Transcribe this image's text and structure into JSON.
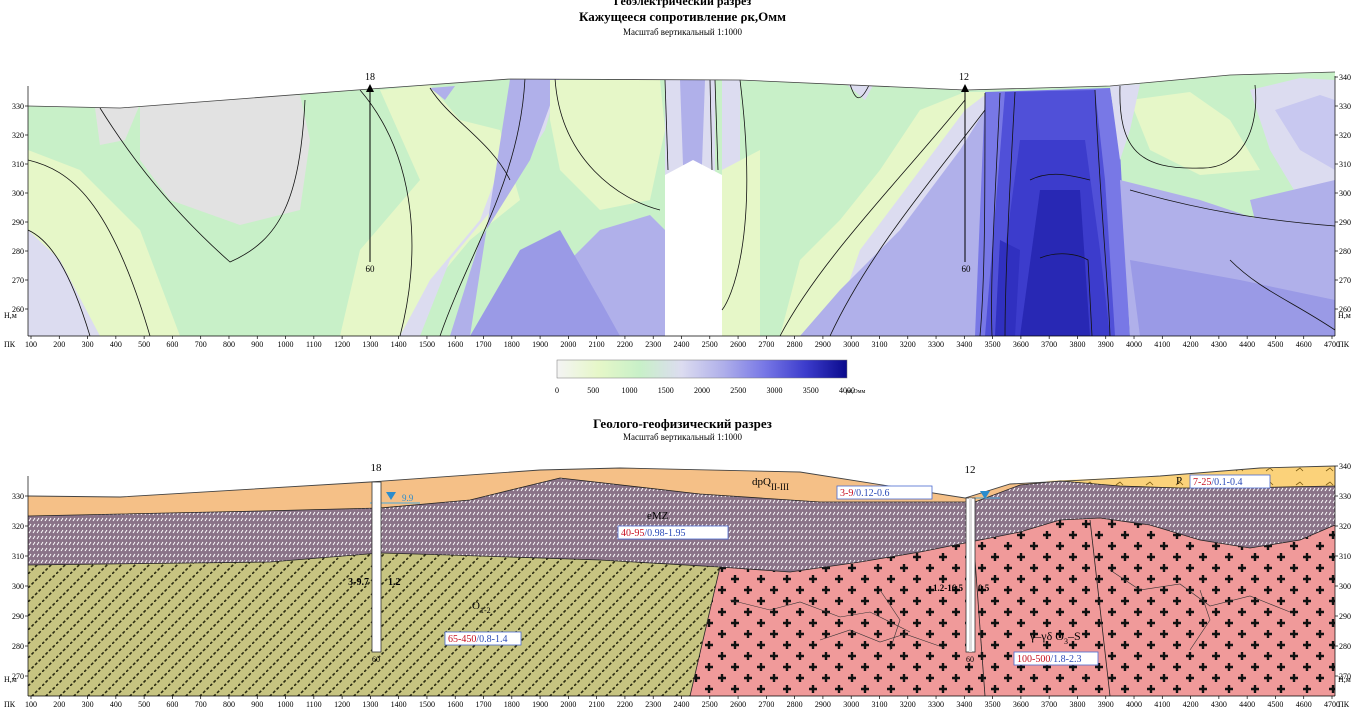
{
  "section1": {
    "title_line1": "Геоэлектрический разрез",
    "title_line2": "Кажущееся сопротивление ρк,Омм",
    "scale": "Масштаб вертикальный 1:1000",
    "wells": [
      {
        "name": "18",
        "depth": "60"
      },
      {
        "name": "12",
        "depth": "60"
      }
    ]
  },
  "colorbar": {
    "ticks": [
      "0",
      "500",
      "1000",
      "1500",
      "2000",
      "2500",
      "3000",
      "3500",
      "4000"
    ],
    "unit": "ρк,Омм",
    "stops": [
      "#f4f4f4",
      "#e6f7c8",
      "#c8f0c8",
      "#dcdcf0",
      "#b0b0ea",
      "#7878e6",
      "#3c3ccc",
      "#0a0a8c"
    ]
  },
  "section2": {
    "title": "Геолого-геофизический разрез",
    "scale": "Масштаб вертикальный 1:1000",
    "wells": [
      {
        "name": "18",
        "depth": "60",
        "water": "9.9",
        "left_label": "3-9.7",
        "right_label": "1.2"
      },
      {
        "name": "12",
        "depth": "60",
        "water": "",
        "left_label": "1.2-16.5",
        "right_label": "0.5"
      }
    ],
    "layers": {
      "dpq": "dpQ",
      "dpq_sub": "II-III",
      "emz": "eMZ",
      "p": "P",
      "o": "O",
      "o_sub": "1-2",
      "granite": "γ–γδ O",
      "granite_sub": "3",
      "granite_tail": "–S"
    },
    "boxes": [
      {
        "red": "3-9",
        "blue": "/0.12-0.6"
      },
      {
        "red": "40-95",
        "blue": "/0.98-1.95"
      },
      {
        "red": "7-25",
        "blue": "/0.1-0.4"
      },
      {
        "red": "65-450",
        "blue": "/0.8-1.4"
      },
      {
        "red": "100-500",
        "blue": "/1.8-2.3"
      }
    ]
  },
  "axis": {
    "y_ticks": [
      "330",
      "320",
      "310",
      "300",
      "290",
      "280",
      "270",
      "260"
    ],
    "y_ticks_lower": [
      "330",
      "320",
      "310",
      "300",
      "290",
      "280",
      "270"
    ],
    "y_ticks_right": [
      "340",
      "330",
      "320",
      "310",
      "300",
      "290",
      "280",
      "270",
      "260"
    ],
    "y_ticks_right_lower": [
      "340",
      "330",
      "320",
      "310",
      "300",
      "290",
      "280",
      "270"
    ],
    "y_unit": "Н,м",
    "x_prefix": "ПК",
    "x_ticks": [
      "100",
      "200",
      "300",
      "400",
      "500",
      "600",
      "700",
      "800",
      "900",
      "1000",
      "1100",
      "1200",
      "1300",
      "1400",
      "1500",
      "1600",
      "1700",
      "1800",
      "1900",
      "2000",
      "2100",
      "2200",
      "2300",
      "2400",
      "2500",
      "2600",
      "2700",
      "2800",
      "2900",
      "3000",
      "3100",
      "3200",
      "3300",
      "3400",
      "3500",
      "3600",
      "3700",
      "3800",
      "3900",
      "4000",
      "4100",
      "4200",
      "4300",
      "4400",
      "4500",
      "4600",
      "4700"
    ]
  }
}
